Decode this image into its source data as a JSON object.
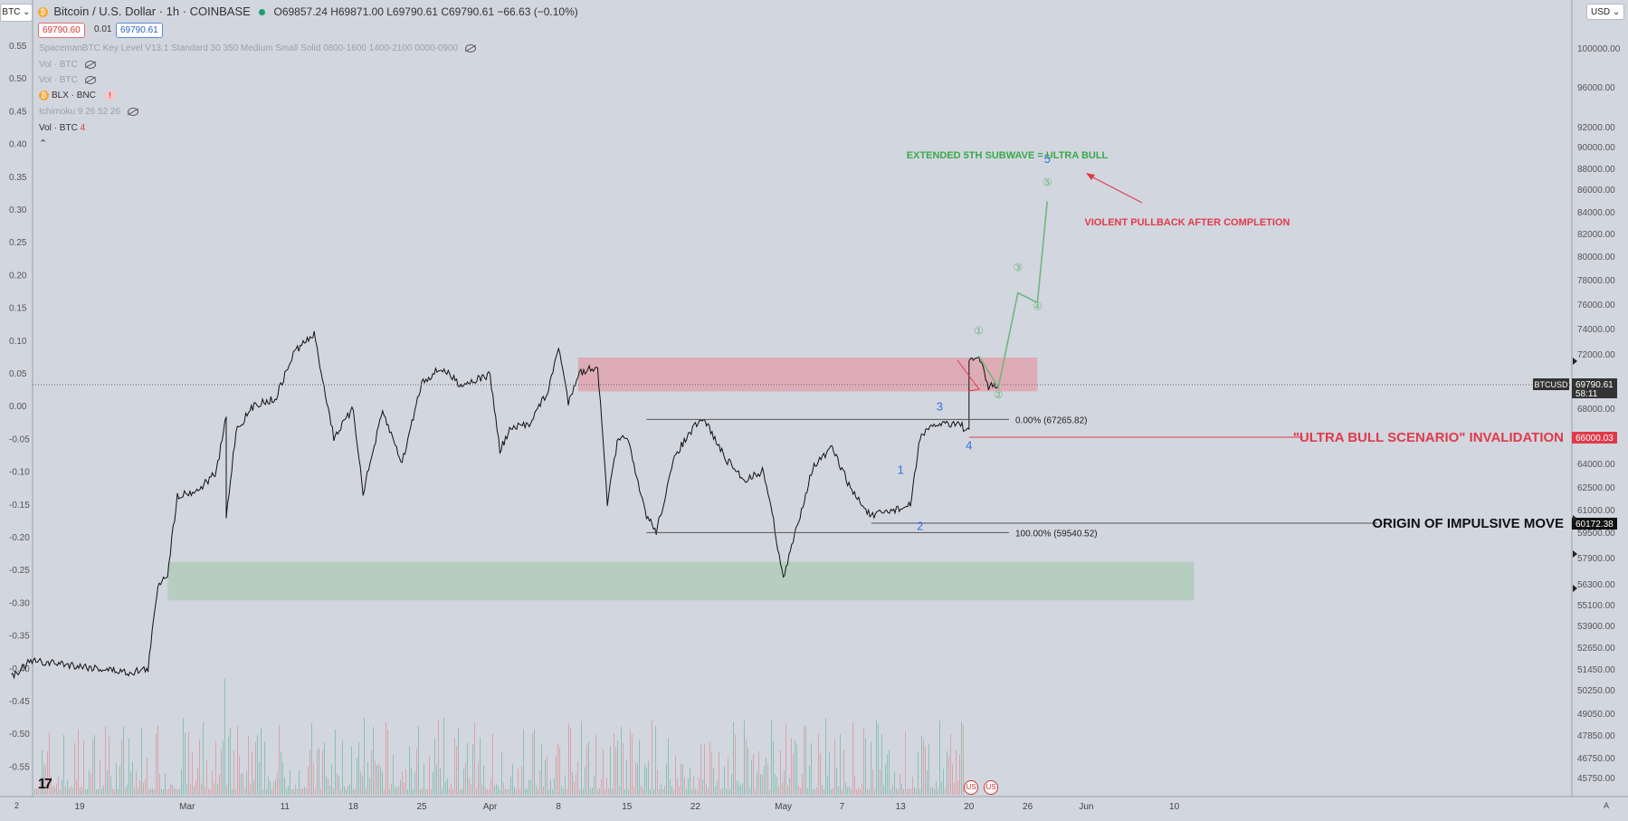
{
  "symbol_button": "BTC",
  "currency_button": "USD",
  "header": {
    "title": "Bitcoin / U.S. Dollar · 1h · COINBASE",
    "ohlc": "O69857.24  H69871.00  L69790.61  C69790.61  −66.63 (−0.10%)",
    "bid": "69790.60",
    "spread": "0.01",
    "ask": "69790.61"
  },
  "indicators": [
    "SpacemanBTC Key Level V13.1 Standard 30 350 Medium Small Solid 0800-1600 1400-2100 0000-0900",
    "Vol · BTC",
    "Vol · BTC",
    "BLX · BNC",
    "Ichimoku 9 26 52 26",
    "Vol · BTC"
  ],
  "indicator_badge": "4",
  "bottom_left_corner": "2",
  "bottom_right_corner": "A",
  "chart_data": {
    "type": "line",
    "title": "Bitcoin / U.S. Dollar · 1h · COINBASE",
    "price_ticks": [
      100000,
      96000,
      92000,
      90000,
      88000,
      86000,
      84000,
      82000,
      80000,
      78000,
      76000,
      74000,
      72000,
      68000,
      64000,
      62500,
      61000,
      59500,
      57900,
      56300,
      55100,
      53900,
      52650,
      51450,
      50250,
      49050,
      47850,
      46750,
      45750
    ],
    "price_tick_labels": [
      "100000.00",
      "96000.00",
      "92000.00",
      "90000.00",
      "88000.00",
      "86000.00",
      "84000.00",
      "82000.00",
      "80000.00",
      "78000.00",
      "76000.00",
      "74000.00",
      "72000.00",
      "68000.00",
      "64000.00",
      "62500.00",
      "61000.00",
      "59500.00",
      "57900.00",
      "56300.00",
      "55100.00",
      "53900.00",
      "52650.00",
      "51450.00",
      "50250.00",
      "49050.00",
      "47850.00",
      "46750.00",
      "45750.00"
    ],
    "left_ticks": [
      "0.55",
      "0.50",
      "0.45",
      "0.40",
      "0.35",
      "0.30",
      "0.25",
      "0.20",
      "0.15",
      "0.10",
      "0.05",
      "0.00",
      "-0.05",
      "-0.10",
      "-0.15",
      "-0.20",
      "-0.25",
      "-0.30",
      "-0.35",
      "-0.40",
      "-0.45",
      "-0.50",
      "-0.55"
    ],
    "x_ticks": [
      "19",
      "Mar",
      "11",
      "18",
      "25",
      "Apr",
      "8",
      "15",
      "22",
      "May",
      "7",
      "13",
      "20",
      "26",
      "Jun",
      "10"
    ],
    "price_path": [
      {
        "date": "2024-02-12",
        "price": 51100
      },
      {
        "date": "2024-02-14",
        "price": 51900
      },
      {
        "date": "2024-02-17",
        "price": 51800
      },
      {
        "date": "2024-02-20",
        "price": 51600
      },
      {
        "date": "2024-02-24",
        "price": 51300
      },
      {
        "date": "2024-02-26",
        "price": 51500
      },
      {
        "date": "2024-02-27",
        "price": 56300
      },
      {
        "date": "2024-02-28",
        "price": 57000
      },
      {
        "date": "2024-02-29",
        "price": 62000
      },
      {
        "date": "2024-03-02",
        "price": 62300
      },
      {
        "date": "2024-03-04",
        "price": 63500
      },
      {
        "date": "2024-03-05",
        "price": 67500
      },
      {
        "date": "2024-03-05",
        "price": 60500
      },
      {
        "date": "2024-03-06",
        "price": 66500
      },
      {
        "date": "2024-03-08",
        "price": 68400
      },
      {
        "date": "2024-03-10",
        "price": 68700
      },
      {
        "date": "2024-03-12",
        "price": 72300
      },
      {
        "date": "2024-03-14",
        "price": 73600
      },
      {
        "date": "2024-03-16",
        "price": 66000
      },
      {
        "date": "2024-03-18",
        "price": 68000
      },
      {
        "date": "2024-03-19",
        "price": 62200
      },
      {
        "date": "2024-03-21",
        "price": 67800
      },
      {
        "date": "2024-03-23",
        "price": 64100
      },
      {
        "date": "2024-03-25",
        "price": 70000
      },
      {
        "date": "2024-03-27",
        "price": 71000
      },
      {
        "date": "2024-03-29",
        "price": 69800
      },
      {
        "date": "2024-04-01",
        "price": 70500
      },
      {
        "date": "2024-04-02",
        "price": 65000
      },
      {
        "date": "2024-04-03",
        "price": 66500
      },
      {
        "date": "2024-04-05",
        "price": 67000
      },
      {
        "date": "2024-04-07",
        "price": 69400
      },
      {
        "date": "2024-04-08",
        "price": 72700
      },
      {
        "date": "2024-04-09",
        "price": 68500
      },
      {
        "date": "2024-04-10",
        "price": 70600
      },
      {
        "date": "2024-04-12",
        "price": 71200
      },
      {
        "date": "2024-04-13",
        "price": 61500
      },
      {
        "date": "2024-04-14",
        "price": 65500
      },
      {
        "date": "2024-04-15",
        "price": 66200
      },
      {
        "date": "2024-04-16",
        "price": 63000
      },
      {
        "date": "2024-04-17",
        "price": 60700
      },
      {
        "date": "2024-04-18",
        "price": 59600
      },
      {
        "date": "2024-04-20",
        "price": 64800
      },
      {
        "date": "2024-04-22",
        "price": 66800
      },
      {
        "date": "2024-04-23",
        "price": 67200
      },
      {
        "date": "2024-04-25",
        "price": 64500
      },
      {
        "date": "2024-04-27",
        "price": 63000
      },
      {
        "date": "2024-04-29",
        "price": 63600
      },
      {
        "date": "2024-04-30",
        "price": 60300
      },
      {
        "date": "2024-05-01",
        "price": 56600
      },
      {
        "date": "2024-05-02",
        "price": 59000
      },
      {
        "date": "2024-05-04",
        "price": 63800
      },
      {
        "date": "2024-05-06",
        "price": 65200
      },
      {
        "date": "2024-05-08",
        "price": 62300
      },
      {
        "date": "2024-05-10",
        "price": 60600
      },
      {
        "date": "2024-05-12",
        "price": 61000
      },
      {
        "date": "2024-05-14",
        "price": 61300
      },
      {
        "date": "2024-05-15",
        "price": 66100
      },
      {
        "date": "2024-05-17",
        "price": 67000
      },
      {
        "date": "2024-05-19",
        "price": 67000
      },
      {
        "date": "2024-05-20",
        "price": 66300
      },
      {
        "date": "2024-05-20",
        "price": 71500
      },
      {
        "date": "2024-05-21",
        "price": 71900
      },
      {
        "date": "2024-05-22",
        "price": 69600
      },
      {
        "date": "2024-05-23",
        "price": 69800
      }
    ],
    "projection": [
      {
        "date": "2024-05-21",
        "price": 71900
      },
      {
        "date": "2024-05-23",
        "price": 69600
      },
      {
        "date": "2024-05-25",
        "price": 77000
      },
      {
        "date": "2024-05-27",
        "price": 76200
      },
      {
        "date": "2024-05-28",
        "price": 85000
      }
    ],
    "resistance_zone": {
      "from": "2024-04-10",
      "to": "2024-05-27",
      "low": 69300,
      "high": 71800
    },
    "support_zone": {
      "from": "2024-02-28",
      "to": "2024-06-12",
      "low": 55400,
      "high": 57700
    },
    "fib_levels": [
      {
        "label": "0.00% (67265.82)",
        "price": 67265.82
      },
      {
        "label": "100.00% (59540.52)",
        "price": 59540.52
      }
    ],
    "invalidation": {
      "price": 66000.03,
      "label": "\"ULTRA BULL SCENARIO\" INVALIDATION"
    },
    "origin": {
      "price": 60172.38,
      "label": "ORIGIN OF IMPULSIVE MOVE"
    },
    "current_price": {
      "symbol": "BTCUSD",
      "price": "69790.61",
      "countdown": "58:11"
    },
    "axis_price_labels": {
      "invalidation": "66000.03",
      "origin": "60172.38"
    },
    "wave_labels": [
      "1",
      "2",
      "3",
      "4",
      "5"
    ],
    "subwave_labels": [
      "①",
      "②",
      "③",
      "④",
      "⑤"
    ],
    "annotations": [
      "EXTENDED 5TH SUBWAVE = ULTRA BULL",
      "VIOLENT PULLBACK AFTER COMPLETION"
    ],
    "colors": {
      "resistance": "#e88a94",
      "support": "#9ec8a6",
      "projection": "#6db87a",
      "invalidation": "#e03a4a",
      "wave_blue": "#3a6fe0",
      "annotation_green": "#3aa84a",
      "annotation_red": "#e03a4a"
    }
  }
}
